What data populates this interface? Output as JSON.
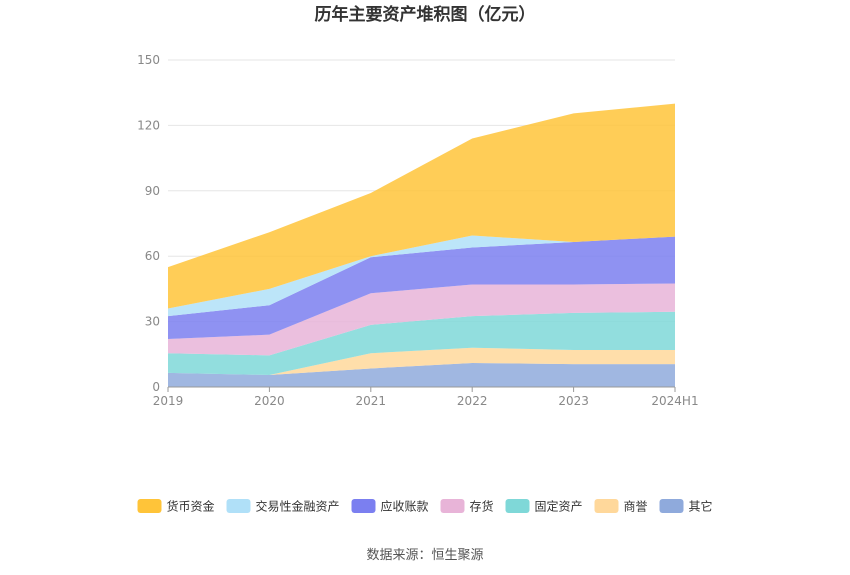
{
  "chart_data": {
    "type": "area",
    "stacked": true,
    "title": "历年主要资产堆积图（亿元）",
    "categories": [
      "2019",
      "2020",
      "2021",
      "2022",
      "2023",
      "2024H1"
    ],
    "ylim": [
      0,
      150
    ],
    "yticks": [
      0,
      30,
      60,
      90,
      120,
      150
    ],
    "grid": true,
    "legend_position": "bottom",
    "series": [
      {
        "name": "其它",
        "color": "#8faadc",
        "values": [
          6.5,
          5.5,
          8.5,
          11.0,
          10.5,
          10.5
        ]
      },
      {
        "name": "商誉",
        "color": "#ffd89b",
        "values": [
          0.0,
          0.0,
          7.0,
          7.0,
          6.5,
          6.5
        ]
      },
      {
        "name": "固定资产",
        "color": "#7fd8d8",
        "values": [
          9.0,
          9.0,
          13.0,
          14.5,
          17.0,
          17.5
        ]
      },
      {
        "name": "存货",
        "color": "#e8b4d8",
        "values": [
          6.5,
          9.5,
          14.5,
          14.5,
          13.0,
          13.0
        ]
      },
      {
        "name": "应收账款",
        "color": "#7b7ff0",
        "values": [
          10.5,
          13.5,
          16.5,
          17.0,
          19.5,
          21.5
        ]
      },
      {
        "name": "交易性金融资产",
        "color": "#b0e0f8",
        "values": [
          3.5,
          7.5,
          0.5,
          5.5,
          0.0,
          0.0
        ]
      },
      {
        "name": "货币资金",
        "color": "#ffc439",
        "values": [
          19.0,
          26.0,
          29.0,
          44.5,
          59.0,
          61.0
        ]
      }
    ],
    "legend_order": [
      "货币资金",
      "交易性金融资产",
      "应收账款",
      "存货",
      "固定资产",
      "商誉",
      "其它"
    ]
  },
  "source_text": "数据来源：恒生聚源"
}
